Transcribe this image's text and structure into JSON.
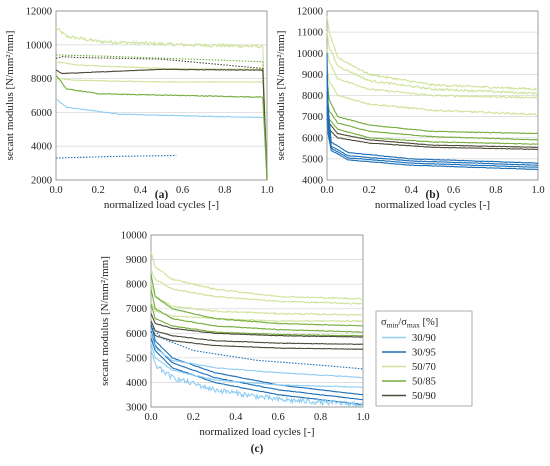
{
  "colors": {
    "30/90": "#8fcdf2",
    "30/95": "#1b6fb8",
    "50/70": "#cfe39a",
    "50/85": "#74ad3d",
    "50/90": "#4d4a3a"
  },
  "legend": {
    "title_main": "σ",
    "title_sub1": "min",
    "title_sep": "/σ",
    "title_sub2": "max",
    "title_unit": " [%]",
    "entries": [
      {
        "label": "30/90",
        "color_key": "30/90"
      },
      {
        "label": "30/95",
        "color_key": "30/95"
      },
      {
        "label": "50/70",
        "color_key": "50/70"
      },
      {
        "label": "50/85",
        "color_key": "50/85"
      },
      {
        "label": "50/90",
        "color_key": "50/90"
      }
    ]
  },
  "chart_data": [
    {
      "panel": "(a)",
      "type": "line",
      "xlabel": "normalized load cycles [-]",
      "ylabel": "secant modulus [N/mm²/mm]",
      "xlim": [
        0,
        1.0
      ],
      "ylim": [
        2000,
        12000
      ],
      "xticks": [
        "0.0",
        "0.2",
        "0.4",
        "0.6",
        "0.8",
        "1.0"
      ],
      "yticks": [
        "2000",
        "4000",
        "6000",
        "8000",
        "10000",
        "12000"
      ],
      "series": [
        {
          "color_key": "50/70",
          "style": "solid",
          "noise": 0.02,
          "x": [
            0,
            0.05,
            0.2,
            0.4,
            0.6,
            0.8,
            0.98,
            1.0
          ],
          "y": [
            11000,
            10500,
            10200,
            10100,
            10000,
            9950,
            9900,
            2000
          ]
        },
        {
          "color_key": "50/70",
          "style": "solid",
          "noise": 0.004,
          "x": [
            0,
            0.1,
            0.5,
            0.98,
            1.0
          ],
          "y": [
            9000,
            8800,
            8600,
            8550,
            2000
          ]
        },
        {
          "color_key": "50/70",
          "style": "solid",
          "noise": 0.004,
          "x": [
            0,
            0.1,
            0.5,
            0.98
          ],
          "y": [
            8000,
            7900,
            7800,
            7800
          ]
        },
        {
          "color_key": "50/85",
          "style": "dotted",
          "noise": 0,
          "x": [
            0,
            0.3,
            0.98,
            1.0
          ],
          "y": [
            9400,
            9300,
            9000,
            2000
          ]
        },
        {
          "color_key": "50/90",
          "style": "dotted",
          "noise": 0,
          "x": [
            0,
            0.03,
            0.1,
            0.5,
            0.98,
            1.0
          ],
          "y": [
            9200,
            9300,
            9250,
            9150,
            8600,
            2000
          ]
        },
        {
          "color_key": "50/90",
          "style": "solid",
          "noise": 0.003,
          "x": [
            0,
            0.03,
            0.5,
            0.98,
            1.0
          ],
          "y": [
            8500,
            8300,
            8550,
            8500,
            2000
          ]
        },
        {
          "color_key": "50/85",
          "style": "solid",
          "noise": 0.005,
          "x": [
            0,
            0.05,
            0.2,
            0.6,
            0.98,
            1.0
          ],
          "y": [
            8200,
            7400,
            7100,
            7000,
            6900,
            2000
          ]
        },
        {
          "color_key": "30/90",
          "style": "solid",
          "noise": 0.004,
          "x": [
            0,
            0.05,
            0.3,
            0.6,
            0.98
          ],
          "y": [
            6800,
            6300,
            5900,
            5800,
            5700
          ]
        },
        {
          "color_key": "30/95",
          "style": "dotted",
          "noise": 0,
          "x": [
            0,
            0.3,
            0.57
          ],
          "y": [
            3300,
            3400,
            3450
          ]
        }
      ]
    },
    {
      "panel": "(b)",
      "type": "line",
      "xlabel": "normalized load cycles [-]",
      "ylabel": "secant modulus [N/mm²/mm]",
      "xlim": [
        0,
        1.0
      ],
      "ylim": [
        4000,
        12000
      ],
      "xticks": [
        "0.0",
        "0.2",
        "0.4",
        "0.6",
        "0.8",
        "1.0"
      ],
      "yticks": [
        "4000",
        "5000",
        "6000",
        "7000",
        "8000",
        "9000",
        "10000",
        "11000",
        "12000"
      ],
      "series": [
        {
          "color_key": "50/70",
          "style": "solid",
          "noise": 0.012,
          "x": [
            0,
            0.01,
            0.05,
            0.2,
            0.5,
            1.0
          ],
          "y": [
            11700,
            11000,
            9800,
            9000,
            8500,
            8300
          ]
        },
        {
          "color_key": "50/70",
          "style": "solid",
          "noise": 0.012,
          "x": [
            0,
            0.01,
            0.05,
            0.2,
            0.5,
            1.0
          ],
          "y": [
            11000,
            10300,
            9400,
            8700,
            8300,
            8100
          ]
        },
        {
          "color_key": "50/70",
          "style": "solid",
          "noise": 0.01,
          "x": [
            0,
            0.01,
            0.05,
            0.2,
            0.5,
            1.0
          ],
          "y": [
            10200,
            9600,
            8800,
            8300,
            8000,
            7900
          ]
        },
        {
          "color_key": "50/70",
          "style": "solid",
          "noise": 0.01,
          "x": [
            0,
            0.01,
            0.05,
            0.2,
            0.5,
            1.0
          ],
          "y": [
            9300,
            8700,
            8000,
            7600,
            7300,
            7100
          ]
        },
        {
          "color_key": "50/85",
          "style": "solid",
          "noise": 0.004,
          "x": [
            0,
            0.01,
            0.05,
            0.2,
            0.5,
            1.0
          ],
          "y": [
            8800,
            7800,
            7000,
            6600,
            6300,
            6200
          ]
        },
        {
          "color_key": "50/85",
          "style": "solid",
          "noise": 0.004,
          "x": [
            0,
            0.01,
            0.05,
            0.2,
            0.5,
            1.0
          ],
          "y": [
            8000,
            7300,
            6700,
            6300,
            6050,
            5900
          ]
        },
        {
          "color_key": "50/85",
          "style": "solid",
          "noise": 0.004,
          "x": [
            0,
            0.01,
            0.05,
            0.2,
            0.5,
            1.0
          ],
          "y": [
            7400,
            6900,
            6400,
            6000,
            5800,
            5700
          ]
        },
        {
          "color_key": "50/90",
          "style": "solid",
          "noise": 0.003,
          "x": [
            0,
            0.01,
            0.05,
            0.2,
            0.5,
            1.0
          ],
          "y": [
            7200,
            6700,
            6200,
            5900,
            5650,
            5550
          ]
        },
        {
          "color_key": "50/90",
          "style": "solid",
          "noise": 0.003,
          "x": [
            0,
            0.01,
            0.05,
            0.2,
            0.5,
            1.0
          ],
          "y": [
            6900,
            6400,
            6000,
            5750,
            5550,
            5450
          ]
        },
        {
          "color_key": "30/95",
          "style": "solid",
          "noise": 0.003,
          "x": [
            0,
            0.005,
            0.02,
            0.1,
            0.4,
            1.0
          ],
          "y": [
            10000,
            7500,
            5800,
            5300,
            5000,
            4800
          ]
        },
        {
          "color_key": "30/95",
          "style": "solid",
          "noise": 0.003,
          "x": [
            0,
            0.005,
            0.02,
            0.1,
            0.4,
            1.0
          ],
          "y": [
            9000,
            7000,
            5600,
            5150,
            4900,
            4700
          ]
        },
        {
          "color_key": "30/95",
          "style": "solid",
          "noise": 0.003,
          "x": [
            0,
            0.005,
            0.02,
            0.1,
            0.4,
            1.0
          ],
          "y": [
            8200,
            6500,
            5500,
            5050,
            4800,
            4600
          ]
        },
        {
          "color_key": "30/95",
          "style": "solid",
          "noise": 0.003,
          "x": [
            0,
            0.005,
            0.02,
            0.1,
            0.4,
            1.0
          ],
          "y": [
            7500,
            6200,
            5400,
            4950,
            4700,
            4500
          ]
        }
      ]
    },
    {
      "panel": "(c)",
      "type": "line",
      "xlabel": "normalized load cycles [-]",
      "ylabel": "secant modulus [N/mm²/mm]",
      "xlim": [
        0,
        1.0
      ],
      "ylim": [
        3000,
        10000
      ],
      "xticks": [
        "0.0",
        "0.2",
        "0.4",
        "0.6",
        "0.8",
        "1.0"
      ],
      "yticks": [
        "3000",
        "4000",
        "5000",
        "6000",
        "7000",
        "8000",
        "9000",
        "10000"
      ],
      "series": [
        {
          "color_key": "50/70",
          "style": "solid",
          "noise": 0.008,
          "x": [
            0,
            0.02,
            0.1,
            0.3,
            0.6,
            1.0
          ],
          "y": [
            9300,
            8700,
            8200,
            7800,
            7500,
            7400
          ]
        },
        {
          "color_key": "50/70",
          "style": "solid",
          "noise": 0.008,
          "x": [
            0,
            0.02,
            0.1,
            0.3,
            0.6,
            1.0
          ],
          "y": [
            8600,
            8200,
            7800,
            7500,
            7300,
            7200
          ]
        },
        {
          "color_key": "50/70",
          "style": "solid",
          "noise": 0.008,
          "x": [
            0,
            0.02,
            0.1,
            0.3,
            0.6,
            1.0
          ],
          "y": [
            8000,
            7500,
            7100,
            6900,
            6800,
            6750
          ]
        },
        {
          "color_key": "50/70",
          "style": "solid",
          "noise": 0.006,
          "x": [
            0,
            0.02,
            0.1,
            0.3,
            0.6,
            1.0
          ],
          "y": [
            7300,
            6900,
            6700,
            6600,
            6500,
            6500
          ]
        },
        {
          "color_key": "50/85",
          "style": "solid",
          "noise": 0.004,
          "x": [
            0,
            0.02,
            0.1,
            0.3,
            0.6,
            1.0
          ],
          "y": [
            8400,
            7500,
            7000,
            6600,
            6400,
            6300
          ]
        },
        {
          "color_key": "50/85",
          "style": "solid",
          "noise": 0.004,
          "x": [
            0,
            0.02,
            0.1,
            0.3,
            0.6,
            1.0
          ],
          "y": [
            7800,
            7000,
            6600,
            6300,
            6150,
            6050
          ]
        },
        {
          "color_key": "50/85",
          "style": "solid",
          "noise": 0.004,
          "x": [
            0,
            0.02,
            0.1,
            0.3,
            0.6,
            1.0
          ],
          "y": [
            7200,
            6600,
            6300,
            6050,
            5950,
            5900
          ]
        },
        {
          "color_key": "50/90",
          "style": "solid",
          "noise": 0.003,
          "x": [
            0,
            0.02,
            0.1,
            0.3,
            0.6,
            1.0
          ],
          "y": [
            6800,
            6400,
            6200,
            6000,
            5900,
            5850
          ]
        },
        {
          "color_key": "50/90",
          "style": "solid",
          "noise": 0.003,
          "x": [
            0,
            0.02,
            0.1,
            0.3,
            0.6,
            1.0
          ],
          "y": [
            6500,
            6100,
            5900,
            5700,
            5600,
            5550
          ]
        },
        {
          "color_key": "50/90",
          "style": "solid",
          "noise": 0.003,
          "x": [
            0,
            0.02,
            0.1,
            0.3,
            0.6,
            1.0
          ],
          "y": [
            6300,
            5900,
            5700,
            5500,
            5400,
            5350
          ]
        },
        {
          "color_key": "30/95",
          "style": "dotted",
          "noise": 0,
          "x": [
            0,
            0.05,
            0.2,
            0.5,
            0.8,
            1.0
          ],
          "y": [
            6300,
            5800,
            5300,
            4900,
            4700,
            4550
          ]
        },
        {
          "color_key": "30/95",
          "style": "solid",
          "noise": 0.003,
          "x": [
            0,
            0.02,
            0.1,
            0.3,
            0.6,
            1.0
          ],
          "y": [
            6400,
            5700,
            5000,
            4400,
            3900,
            3500
          ]
        },
        {
          "color_key": "30/95",
          "style": "solid",
          "noise": 0.003,
          "x": [
            0,
            0.02,
            0.1,
            0.3,
            0.6,
            1.0
          ],
          "y": [
            6100,
            5500,
            4800,
            4200,
            3700,
            3300
          ]
        },
        {
          "color_key": "30/95",
          "style": "solid",
          "noise": 0.003,
          "x": [
            0,
            0.02,
            0.1,
            0.3,
            0.6,
            1.0
          ],
          "y": [
            5800,
            5300,
            4600,
            4000,
            3500,
            3100
          ]
        },
        {
          "color_key": "30/90",
          "style": "solid",
          "noise": 0.005,
          "x": [
            0,
            0.02,
            0.1,
            0.3,
            0.6,
            1.0
          ],
          "y": [
            6000,
            5400,
            4900,
            4600,
            4400,
            4200
          ]
        },
        {
          "color_key": "30/90",
          "style": "solid",
          "noise": 0.005,
          "x": [
            0,
            0.02,
            0.1,
            0.3,
            0.6,
            1.0
          ],
          "y": [
            5600,
            5000,
            4500,
            4100,
            3900,
            3800
          ]
        },
        {
          "color_key": "30/90",
          "style": "solid",
          "noise": 0.03,
          "x": [
            0,
            0.02,
            0.1,
            0.3,
            0.6,
            1.0
          ],
          "y": [
            5300,
            4700,
            4200,
            3700,
            3300,
            3100
          ]
        }
      ]
    }
  ]
}
